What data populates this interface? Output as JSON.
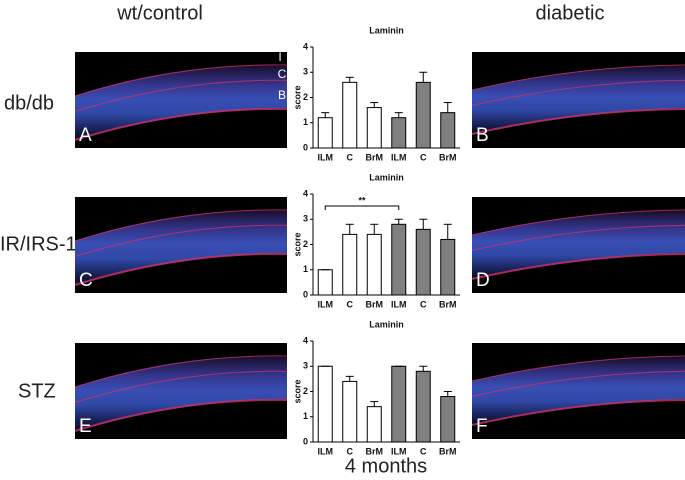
{
  "column_headers": [
    "wt/control",
    "diabetic"
  ],
  "row_labels": [
    "db/db",
    "IR/IRS-1",
    "STZ"
  ],
  "panel_letters": [
    "A",
    "B",
    "C",
    "D",
    "E",
    "F"
  ],
  "layer_labels": [
    "I",
    "C",
    "B"
  ],
  "footer": "4 months",
  "chart_data": [
    {
      "type": "bar",
      "title": "Laminin",
      "ylabel": "score",
      "categories": [
        "ILM",
        "C",
        "BrM",
        "ILM",
        "C",
        "BrM"
      ],
      "values": [
        1.2,
        2.6,
        1.6,
        1.2,
        2.6,
        1.4
      ],
      "errors": [
        0.2,
        0.2,
        0.2,
        0.2,
        0.4,
        0.4
      ],
      "colors": [
        "#ffffff",
        "#ffffff",
        "#ffffff",
        "#808080",
        "#808080",
        "#808080"
      ],
      "ylim": [
        0,
        4
      ],
      "yticks": [
        0,
        1,
        2,
        3,
        4
      ]
    },
    {
      "type": "bar",
      "title": "Laminin",
      "ylabel": "score",
      "categories": [
        "ILM",
        "C",
        "BrM",
        "ILM",
        "C",
        "BrM"
      ],
      "values": [
        1.0,
        2.4,
        2.4,
        2.8,
        2.6,
        2.2
      ],
      "errors": [
        0,
        0.4,
        0.4,
        0.2,
        0.4,
        0.6
      ],
      "colors": [
        "#ffffff",
        "#ffffff",
        "#ffffff",
        "#808080",
        "#808080",
        "#808080"
      ],
      "ylim": [
        0,
        4
      ],
      "yticks": [
        0,
        1,
        2,
        3,
        4
      ],
      "annotation": "**"
    },
    {
      "type": "bar",
      "title": "Laminin",
      "ylabel": "score",
      "categories": [
        "ILM",
        "C",
        "BrM",
        "ILM",
        "C",
        "BrM"
      ],
      "values": [
        3.0,
        2.4,
        1.4,
        3.0,
        2.8,
        1.8
      ],
      "errors": [
        0,
        0.2,
        0.2,
        0,
        0.2,
        0.2
      ],
      "colors": [
        "#ffffff",
        "#ffffff",
        "#ffffff",
        "#808080",
        "#808080",
        "#808080"
      ],
      "ylim": [
        0,
        4
      ],
      "yticks": [
        0,
        1,
        2,
        3,
        4
      ]
    }
  ]
}
